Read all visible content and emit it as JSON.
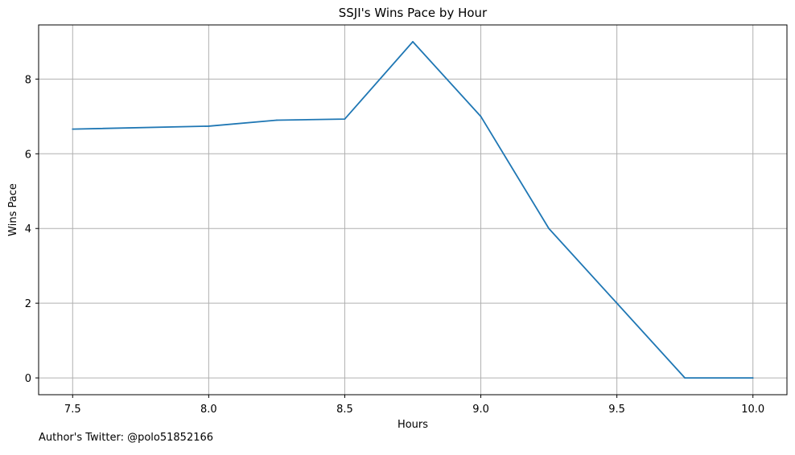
{
  "chart_data": {
    "type": "line",
    "title": "SSJI's Wins Pace by Hour",
    "xlabel": "Hours",
    "ylabel": "Wins Pace",
    "x": [
      7.5,
      8.0,
      8.25,
      8.5,
      8.75,
      9.0,
      9.25,
      9.5,
      9.75,
      10.0
    ],
    "series": [
      {
        "values": [
          6.66,
          6.74,
          6.9,
          6.93,
          9.0,
          7.0,
          4.0,
          2.0,
          0.0,
          0.0
        ]
      }
    ],
    "xticks": [
      7.5,
      8.0,
      8.5,
      9.0,
      9.5,
      10.0
    ],
    "xtick_labels": [
      "7.5",
      "8.0",
      "8.5",
      "9.0",
      "9.5",
      "10.0"
    ],
    "yticks": [
      0,
      2,
      4,
      6,
      8
    ],
    "ytick_labels": [
      "0",
      "2",
      "4",
      "6",
      "8"
    ],
    "xlim": [
      7.375,
      10.125
    ],
    "ylim": [
      -0.45,
      9.45
    ],
    "grid": true,
    "line_color": "#1f77b4",
    "grid_color": "#b0b0b0"
  },
  "footnote": "Author's Twitter: @polo51852166"
}
